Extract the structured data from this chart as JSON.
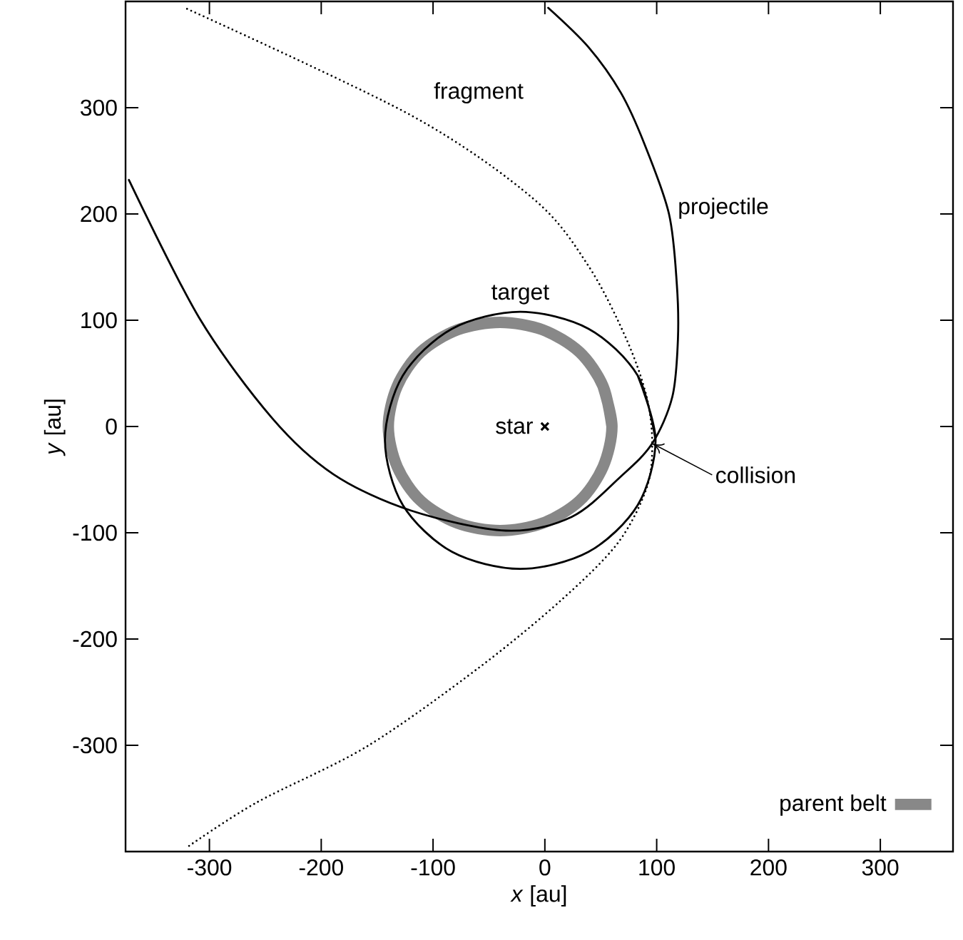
{
  "chart_data": {
    "type": "line",
    "xlabel": "*x* [au]",
    "ylabel": "*y* [au]",
    "xlim": [
      -375,
      365
    ],
    "ylim": [
      -400,
      400
    ],
    "xticks": [
      -300,
      -200,
      -100,
      0,
      100,
      200,
      300
    ],
    "yticks": [
      -300,
      -200,
      -100,
      0,
      100,
      200,
      300
    ],
    "grid": false,
    "legend": "bottom right",
    "series": [
      {
        "name": "parent belt",
        "color": "#888888",
        "x": [
          60,
          52,
          31,
          -2,
          -40,
          -78,
          -111,
          -132,
          -140,
          -132,
          -111,
          -78,
          -40,
          -2,
          31,
          52,
          60,
          52
        ],
        "values": [
          0,
          38,
          70,
          91,
          98,
          91,
          70,
          38,
          0,
          -38,
          -70,
          -91,
          -98,
          -91,
          -70,
          -38,
          0,
          38
        ]
      },
      {
        "name": "target",
        "color": "#000000",
        "x": [
          99,
          83,
          39,
          -22,
          -83,
          -127,
          -143,
          -127,
          -83,
          -22,
          39,
          83,
          99,
          83
        ],
        "values": [
          -13,
          48,
          92,
          108,
          92,
          48,
          -13,
          -74,
          -118,
          -134,
          -118,
          -74,
          -13,
          48
        ]
      },
      {
        "name": "projectile",
        "color": "#000000",
        "x": [
          -372,
          -309,
          -244,
          -189,
          -120,
          -35,
          24,
          68,
          96,
          114,
          119,
          118,
          111,
          89,
          68,
          39,
          3
        ],
        "values": [
          232,
          102,
          8,
          -45,
          -79,
          -98,
          -85,
          -47,
          -16,
          28,
          82,
          134,
          200,
          266,
          314,
          357,
          394
        ]
      },
      {
        "name": "fragment",
        "color": "#000000",
        "line_style": "dotted",
        "x": [
          -320,
          -120,
          -10,
          39,
          73,
          91,
          96,
          91,
          65,
          14,
          -59,
          -159,
          -258,
          -320
        ],
        "values": [
          393,
          293,
          214,
          151,
          82,
          28,
          -16,
          -58,
          -110,
          -164,
          -227,
          -301,
          -354,
          -396
        ]
      },
      {
        "type": "scatter",
        "marker": "cross",
        "color": "#000000",
        "x": [
          0
        ],
        "values": [
          0
        ]
      }
    ],
    "annotations": [
      {
        "text": "star",
        "x": 0,
        "y": 0
      },
      {
        "text": "collision",
        "x": 96,
        "y": -16
      }
    ]
  }
}
